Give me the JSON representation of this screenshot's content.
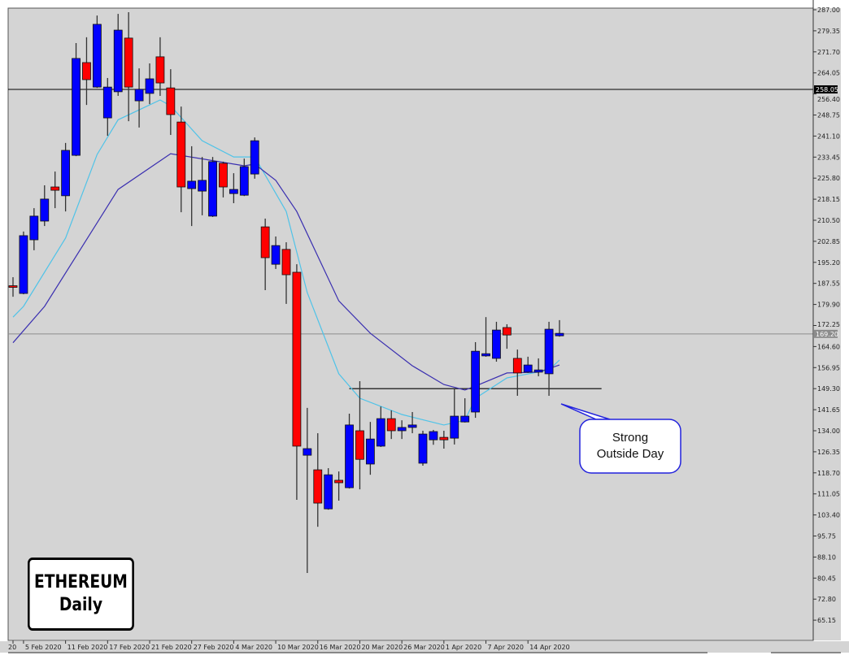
{
  "chart_data": {
    "type": "candlestick",
    "title": "",
    "instrument_label": "ETHEREUM",
    "timeframe_label": "Daily",
    "colors": {
      "background": "#d4d4d4",
      "bull": "#0000ff",
      "bear": "#ff0000",
      "wick": "#333333",
      "fast_ma": "#4fc3e8",
      "slow_ma": "#3a2fb0"
    },
    "ylim": [
      62,
      288
    ],
    "y_ticks": [
      "287.00",
      "279.35",
      "271.70",
      "264.05",
      "256.40",
      "248.75",
      "241.10",
      "233.45",
      "225.80",
      "218.15",
      "210.50",
      "202.85",
      "195.20",
      "187.55",
      "179.90",
      "172.25",
      "164.60",
      "156.95",
      "149.30",
      "141.65",
      "134.00",
      "126.35",
      "118.70",
      "111.05",
      "103.40",
      "95.75",
      "88.10",
      "80.45",
      "72.80",
      "65.15"
    ],
    "x_ticks": [
      {
        "index": 0,
        "label": "20"
      },
      {
        "index": 1,
        "label": "5 Feb 2020"
      },
      {
        "index": 5,
        "label": "11 Feb 2020"
      },
      {
        "index": 9,
        "label": "17 Feb 2020"
      },
      {
        "index": 13,
        "label": "21 Feb 2020"
      },
      {
        "index": 17,
        "label": "27 Feb 2020"
      },
      {
        "index": 21,
        "label": "4 Mar 2020"
      },
      {
        "index": 25,
        "label": "10 Mar 2020"
      },
      {
        "index": 29,
        "label": "16 Mar 2020"
      },
      {
        "index": 33,
        "label": "20 Mar 2020"
      },
      {
        "index": 37,
        "label": "26 Mar 2020"
      },
      {
        "index": 41,
        "label": "1 Apr 2020"
      },
      {
        "index": 45,
        "label": "7 Apr 2020"
      },
      {
        "index": 49,
        "label": "14 Apr 2020"
      }
    ],
    "candles": [
      {
        "date": "2020-02-04",
        "o": 186.7,
        "h": 189.8,
        "l": 182.7,
        "c": 186.3
      },
      {
        "date": "2020-02-05",
        "o": 183.9,
        "h": 206.4,
        "l": 183.6,
        "c": 204.9
      },
      {
        "date": "2020-02-06",
        "o": 203.4,
        "h": 214.9,
        "l": 199.6,
        "c": 212.0
      },
      {
        "date": "2020-02-07",
        "o": 210.2,
        "h": 223.2,
        "l": 208.4,
        "c": 218.2
      },
      {
        "date": "2020-02-10",
        "o": 222.6,
        "h": 228.2,
        "l": 214.9,
        "c": 221.4
      },
      {
        "date": "2020-02-11",
        "o": 219.4,
        "h": 238.6,
        "l": 213.7,
        "c": 235.9
      },
      {
        "date": "2020-02-12",
        "o": 234.1,
        "h": 274.9,
        "l": 233.8,
        "c": 269.3
      },
      {
        "date": "2020-02-13",
        "o": 267.8,
        "h": 277.0,
        "l": 252.4,
        "c": 261.6
      },
      {
        "date": "2020-02-14",
        "o": 258.9,
        "h": 284.9,
        "l": 258.6,
        "c": 281.7
      },
      {
        "date": "2020-02-17",
        "o": 247.7,
        "h": 262.2,
        "l": 241.2,
        "c": 258.9
      },
      {
        "date": "2020-02-18",
        "o": 257.2,
        "h": 285.5,
        "l": 255.7,
        "c": 279.6
      },
      {
        "date": "2020-02-19",
        "o": 276.7,
        "h": 286.1,
        "l": 246.5,
        "c": 258.9
      },
      {
        "date": "2020-02-20",
        "o": 253.9,
        "h": 265.7,
        "l": 244.2,
        "c": 258.1
      },
      {
        "date": "2020-02-21",
        "o": 256.6,
        "h": 267.5,
        "l": 252.7,
        "c": 261.9
      },
      {
        "date": "2020-02-24",
        "o": 269.9,
        "h": 277.0,
        "l": 255.7,
        "c": 260.4
      },
      {
        "date": "2020-02-25",
        "o": 258.6,
        "h": 265.4,
        "l": 241.5,
        "c": 248.9
      },
      {
        "date": "2020-02-26",
        "o": 246.2,
        "h": 251.8,
        "l": 213.4,
        "c": 222.6
      },
      {
        "date": "2020-02-27",
        "o": 222.0,
        "h": 237.4,
        "l": 208.4,
        "c": 224.7
      },
      {
        "date": "2020-02-28",
        "o": 221.1,
        "h": 233.5,
        "l": 212.3,
        "c": 225.0
      },
      {
        "date": "2020-03-02",
        "o": 212.0,
        "h": 233.5,
        "l": 211.7,
        "c": 231.8
      },
      {
        "date": "2020-03-03",
        "o": 231.2,
        "h": 231.8,
        "l": 218.8,
        "c": 222.6
      },
      {
        "date": "2020-03-04",
        "o": 220.2,
        "h": 227.6,
        "l": 216.7,
        "c": 221.7
      },
      {
        "date": "2020-03-05",
        "o": 219.6,
        "h": 232.9,
        "l": 219.3,
        "c": 230.0
      },
      {
        "date": "2020-03-06",
        "o": 227.3,
        "h": 240.6,
        "l": 225.6,
        "c": 239.4
      },
      {
        "date": "2020-03-09",
        "o": 208.1,
        "h": 211.1,
        "l": 185.1,
        "c": 196.9
      },
      {
        "date": "2020-03-10",
        "o": 194.5,
        "h": 204.6,
        "l": 192.8,
        "c": 201.3
      },
      {
        "date": "2020-03-11",
        "o": 199.9,
        "h": 202.5,
        "l": 180.1,
        "c": 190.7
      },
      {
        "date": "2020-03-12",
        "o": 191.6,
        "h": 194.5,
        "l": 108.9,
        "c": 128.4
      },
      {
        "date": "2020-03-13",
        "o": 125.1,
        "h": 142.3,
        "l": 82.3,
        "c": 127.5
      },
      {
        "date": "2020-03-16",
        "o": 119.8,
        "h": 133.1,
        "l": 99.1,
        "c": 107.7
      },
      {
        "date": "2020-03-17",
        "o": 105.6,
        "h": 120.4,
        "l": 105.3,
        "c": 118.0
      },
      {
        "date": "2020-03-18",
        "o": 116.0,
        "h": 119.2,
        "l": 108.6,
        "c": 115.1
      },
      {
        "date": "2020-03-19",
        "o": 113.3,
        "h": 140.2,
        "l": 113.0,
        "c": 136.1
      },
      {
        "date": "2020-03-20",
        "o": 134.0,
        "h": 152.0,
        "l": 112.7,
        "c": 123.6
      },
      {
        "date": "2020-03-23",
        "o": 121.9,
        "h": 137.2,
        "l": 118.0,
        "c": 131.0
      },
      {
        "date": "2020-03-24",
        "o": 128.4,
        "h": 142.8,
        "l": 128.1,
        "c": 138.4
      },
      {
        "date": "2020-03-25",
        "o": 138.4,
        "h": 141.4,
        "l": 131.0,
        "c": 134.0
      },
      {
        "date": "2020-03-26",
        "o": 134.0,
        "h": 137.8,
        "l": 131.0,
        "c": 135.2
      },
      {
        "date": "2020-03-27",
        "o": 135.2,
        "h": 140.8,
        "l": 133.1,
        "c": 136.1
      },
      {
        "date": "2020-03-30",
        "o": 122.2,
        "h": 134.0,
        "l": 121.3,
        "c": 132.8
      },
      {
        "date": "2020-03-31",
        "o": 130.7,
        "h": 134.3,
        "l": 128.9,
        "c": 133.7
      },
      {
        "date": "2020-04-01",
        "o": 131.6,
        "h": 134.0,
        "l": 127.5,
        "c": 130.7
      },
      {
        "date": "2020-04-02",
        "o": 131.3,
        "h": 149.3,
        "l": 129.0,
        "c": 139.3
      },
      {
        "date": "2020-04-03",
        "o": 137.2,
        "h": 145.8,
        "l": 137.0,
        "c": 139.3
      },
      {
        "date": "2020-04-06",
        "o": 140.8,
        "h": 166.2,
        "l": 138.7,
        "c": 162.9
      },
      {
        "date": "2020-04-07",
        "o": 161.2,
        "h": 175.3,
        "l": 160.9,
        "c": 162.0
      },
      {
        "date": "2020-04-08",
        "o": 160.3,
        "h": 173.6,
        "l": 159.1,
        "c": 170.6
      },
      {
        "date": "2020-04-09",
        "o": 171.5,
        "h": 172.7,
        "l": 163.8,
        "c": 168.8
      },
      {
        "date": "2020-04-13",
        "o": 160.3,
        "h": 163.5,
        "l": 146.7,
        "c": 155.0
      },
      {
        "date": "2020-04-14",
        "o": 155.3,
        "h": 160.9,
        "l": 155.0,
        "c": 157.9
      },
      {
        "date": "2020-04-15",
        "o": 155.3,
        "h": 160.3,
        "l": 153.8,
        "c": 156.1
      },
      {
        "date": "2020-04-16",
        "o": 154.7,
        "h": 173.6,
        "l": 146.7,
        "c": 170.9
      },
      {
        "date": "2020-04-17",
        "o": 168.5,
        "h": 174.2,
        "l": 168.2,
        "c": 169.4
      }
    ],
    "moving_averages": [
      {
        "role": "fast",
        "color": "#4fc3e8",
        "points": [
          [
            0,
            175.3
          ],
          [
            1,
            179.2
          ],
          [
            5,
            204.0
          ],
          [
            8,
            234.4
          ],
          [
            10,
            247.0
          ],
          [
            14,
            254.2
          ],
          [
            15,
            252.1
          ],
          [
            18,
            239.4
          ],
          [
            21,
            233.5
          ],
          [
            23,
            233.5
          ],
          [
            26,
            213.7
          ],
          [
            28,
            184.2
          ],
          [
            31,
            154.7
          ],
          [
            33,
            145.8
          ],
          [
            37,
            139.9
          ],
          [
            41,
            136.1
          ],
          [
            43,
            137.8
          ],
          [
            44,
            145.8
          ],
          [
            47,
            153.2
          ],
          [
            51,
            156.1
          ],
          [
            52,
            159.7
          ]
        ]
      },
      {
        "role": "slow",
        "color": "#3a2fb0",
        "points": [
          [
            0,
            166.0
          ],
          [
            3,
            179.2
          ],
          [
            10,
            221.7
          ],
          [
            15,
            234.7
          ],
          [
            22,
            230.3
          ],
          [
            23,
            230.9
          ],
          [
            25,
            225.0
          ],
          [
            27,
            213.7
          ],
          [
            31,
            181.2
          ],
          [
            34,
            169.4
          ],
          [
            38,
            157.6
          ],
          [
            41,
            150.8
          ],
          [
            43,
            148.8
          ],
          [
            44,
            150.2
          ],
          [
            47,
            155.0
          ],
          [
            50,
            155.3
          ],
          [
            52,
            157.9
          ]
        ]
      }
    ],
    "horizontal_lines": [
      {
        "price": 258.05,
        "label": "258.05",
        "color": "#000000"
      },
      {
        "price": 169.2,
        "label": "169.20",
        "color": "#8c8c8c"
      }
    ],
    "segments": [
      {
        "price": 149.3,
        "from_index": 32,
        "to_index": 56,
        "color": "#000000"
      }
    ],
    "annotation": {
      "line1": "Strong",
      "line2": "Outside Day"
    },
    "logo": {
      "line1": "ETHEREUM",
      "line2": "Daily"
    }
  }
}
